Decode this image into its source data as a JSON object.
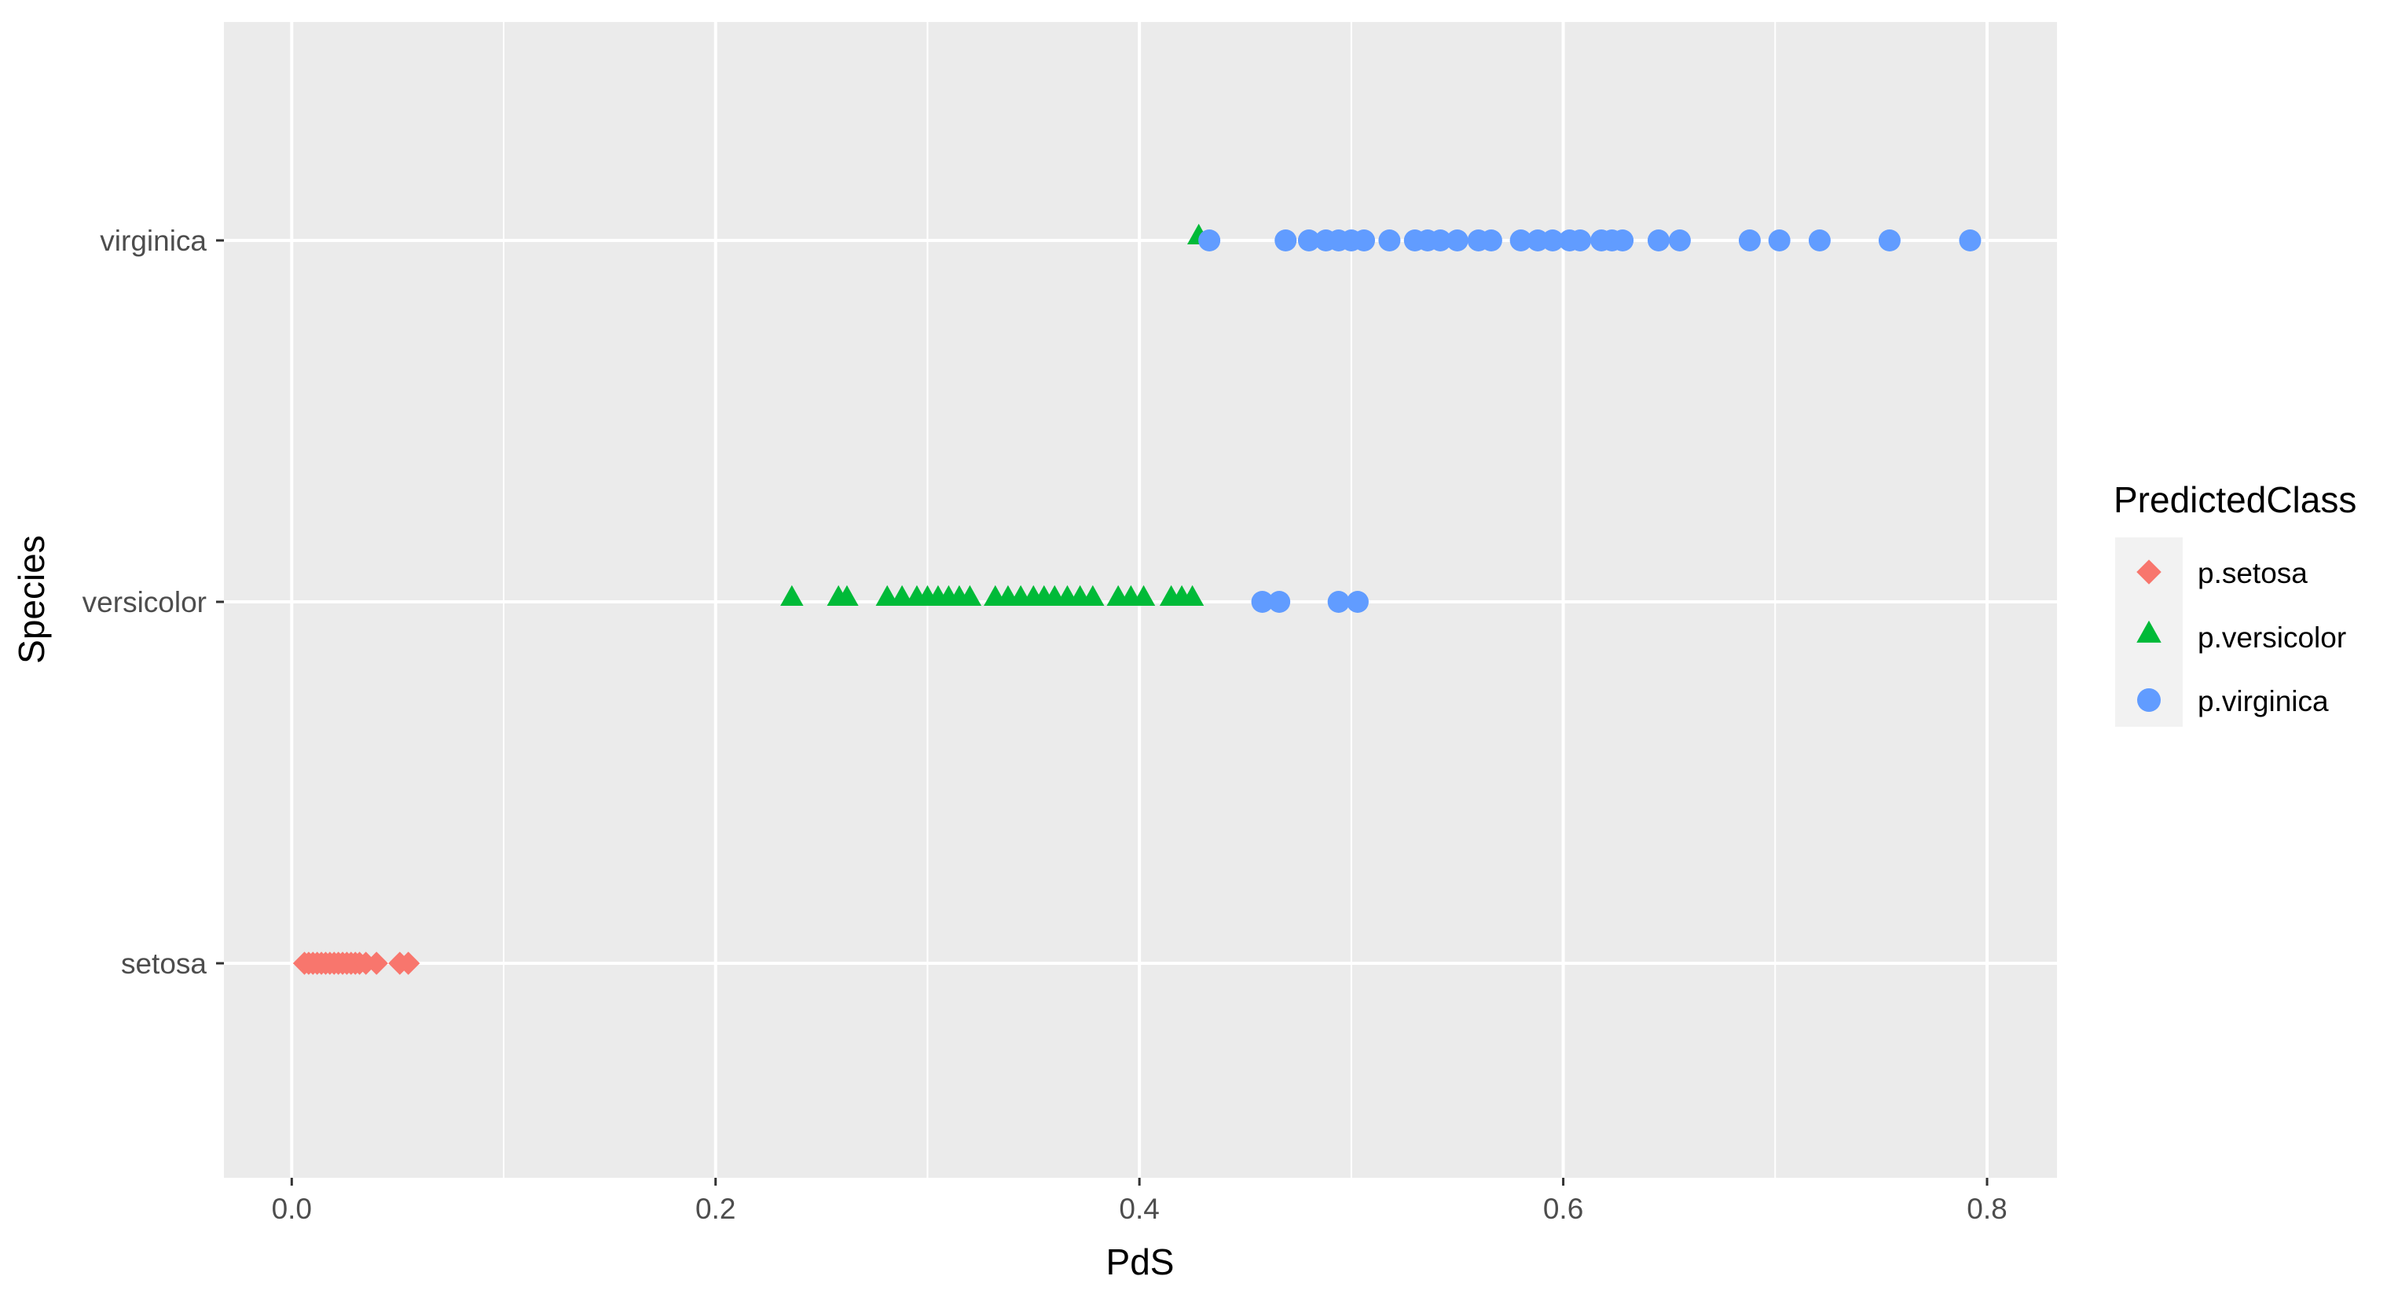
{
  "chart_data": {
    "type": "scatter",
    "title": "",
    "xlabel": "PdS",
    "ylabel": "Species",
    "xlim": [
      -0.032,
      0.833
    ],
    "x_ticks": [
      "0.0",
      "0.2",
      "0.4",
      "0.6",
      "0.8"
    ],
    "x_tick_values": [
      0.0,
      0.2,
      0.4,
      0.6,
      0.8
    ],
    "x_minor_values": [
      0.1,
      0.3,
      0.5,
      0.7
    ],
    "categories": [
      "setosa",
      "versicolor",
      "virginica"
    ],
    "grid": true,
    "legend_position": "right",
    "legend": {
      "title": "PredictedClass",
      "entries": [
        {
          "label": "p.setosa",
          "shape": "diamond",
          "color": "#F8766D"
        },
        {
          "label": "p.versicolor",
          "shape": "triangle",
          "color": "#00BA38"
        },
        {
          "label": "p.virginica",
          "shape": "circle",
          "color": "#619CFF"
        }
      ]
    },
    "colors": {
      "panel": "#EBEBEB",
      "grid": "#FFFFFF",
      "setosa": "#F8766D",
      "versicolor": "#00BA38",
      "virginica": "#619CFF"
    },
    "series": [
      {
        "name": "p.setosa",
        "shape": "diamond",
        "color": "#F8766D",
        "points": [
          {
            "x": 0.006,
            "y": "setosa"
          },
          {
            "x": 0.008,
            "y": "setosa"
          },
          {
            "x": 0.01,
            "y": "setosa"
          },
          {
            "x": 0.012,
            "y": "setosa"
          },
          {
            "x": 0.014,
            "y": "setosa"
          },
          {
            "x": 0.016,
            "y": "setosa"
          },
          {
            "x": 0.018,
            "y": "setosa"
          },
          {
            "x": 0.02,
            "y": "setosa"
          },
          {
            "x": 0.022,
            "y": "setosa"
          },
          {
            "x": 0.024,
            "y": "setosa"
          },
          {
            "x": 0.026,
            "y": "setosa"
          },
          {
            "x": 0.028,
            "y": "setosa"
          },
          {
            "x": 0.03,
            "y": "setosa"
          },
          {
            "x": 0.032,
            "y": "setosa"
          },
          {
            "x": 0.035,
            "y": "setosa"
          },
          {
            "x": 0.04,
            "y": "setosa"
          },
          {
            "x": 0.051,
            "y": "setosa"
          },
          {
            "x": 0.055,
            "y": "setosa"
          }
        ]
      },
      {
        "name": "p.versicolor",
        "shape": "triangle",
        "color": "#00BA38",
        "points": [
          {
            "x": 0.236,
            "y": "versicolor"
          },
          {
            "x": 0.258,
            "y": "versicolor"
          },
          {
            "x": 0.262,
            "y": "versicolor"
          },
          {
            "x": 0.281,
            "y": "versicolor"
          },
          {
            "x": 0.288,
            "y": "versicolor"
          },
          {
            "x": 0.295,
            "y": "versicolor"
          },
          {
            "x": 0.3,
            "y": "versicolor"
          },
          {
            "x": 0.305,
            "y": "versicolor"
          },
          {
            "x": 0.31,
            "y": "versicolor"
          },
          {
            "x": 0.315,
            "y": "versicolor"
          },
          {
            "x": 0.32,
            "y": "versicolor"
          },
          {
            "x": 0.332,
            "y": "versicolor"
          },
          {
            "x": 0.338,
            "y": "versicolor"
          },
          {
            "x": 0.344,
            "y": "versicolor"
          },
          {
            "x": 0.35,
            "y": "versicolor"
          },
          {
            "x": 0.355,
            "y": "versicolor"
          },
          {
            "x": 0.36,
            "y": "versicolor"
          },
          {
            "x": 0.366,
            "y": "versicolor"
          },
          {
            "x": 0.372,
            "y": "versicolor"
          },
          {
            "x": 0.378,
            "y": "versicolor"
          },
          {
            "x": 0.39,
            "y": "versicolor"
          },
          {
            "x": 0.396,
            "y": "versicolor"
          },
          {
            "x": 0.402,
            "y": "versicolor"
          },
          {
            "x": 0.415,
            "y": "versicolor"
          },
          {
            "x": 0.42,
            "y": "versicolor"
          },
          {
            "x": 0.425,
            "y": "versicolor"
          },
          {
            "x": 0.428,
            "y": "virginica"
          }
        ]
      },
      {
        "name": "p.virginica",
        "shape": "circle",
        "color": "#619CFF",
        "points": [
          {
            "x": 0.433,
            "y": "virginica"
          },
          {
            "x": 0.469,
            "y": "virginica"
          },
          {
            "x": 0.48,
            "y": "virginica"
          },
          {
            "x": 0.488,
            "y": "virginica"
          },
          {
            "x": 0.494,
            "y": "virginica"
          },
          {
            "x": 0.5,
            "y": "virginica"
          },
          {
            "x": 0.506,
            "y": "virginica"
          },
          {
            "x": 0.518,
            "y": "virginica"
          },
          {
            "x": 0.53,
            "y": "virginica"
          },
          {
            "x": 0.536,
            "y": "virginica"
          },
          {
            "x": 0.542,
            "y": "virginica"
          },
          {
            "x": 0.55,
            "y": "virginica"
          },
          {
            "x": 0.56,
            "y": "virginica"
          },
          {
            "x": 0.566,
            "y": "virginica"
          },
          {
            "x": 0.58,
            "y": "virginica"
          },
          {
            "x": 0.588,
            "y": "virginica"
          },
          {
            "x": 0.595,
            "y": "virginica"
          },
          {
            "x": 0.603,
            "y": "virginica"
          },
          {
            "x": 0.608,
            "y": "virginica"
          },
          {
            "x": 0.618,
            "y": "virginica"
          },
          {
            "x": 0.623,
            "y": "virginica"
          },
          {
            "x": 0.628,
            "y": "virginica"
          },
          {
            "x": 0.645,
            "y": "virginica"
          },
          {
            "x": 0.655,
            "y": "virginica"
          },
          {
            "x": 0.688,
            "y": "virginica"
          },
          {
            "x": 0.702,
            "y": "virginica"
          },
          {
            "x": 0.721,
            "y": "virginica"
          },
          {
            "x": 0.754,
            "y": "virginica"
          },
          {
            "x": 0.792,
            "y": "virginica"
          },
          {
            "x": 0.458,
            "y": "versicolor"
          },
          {
            "x": 0.466,
            "y": "versicolor"
          },
          {
            "x": 0.494,
            "y": "versicolor"
          },
          {
            "x": 0.503,
            "y": "versicolor"
          }
        ]
      }
    ]
  }
}
